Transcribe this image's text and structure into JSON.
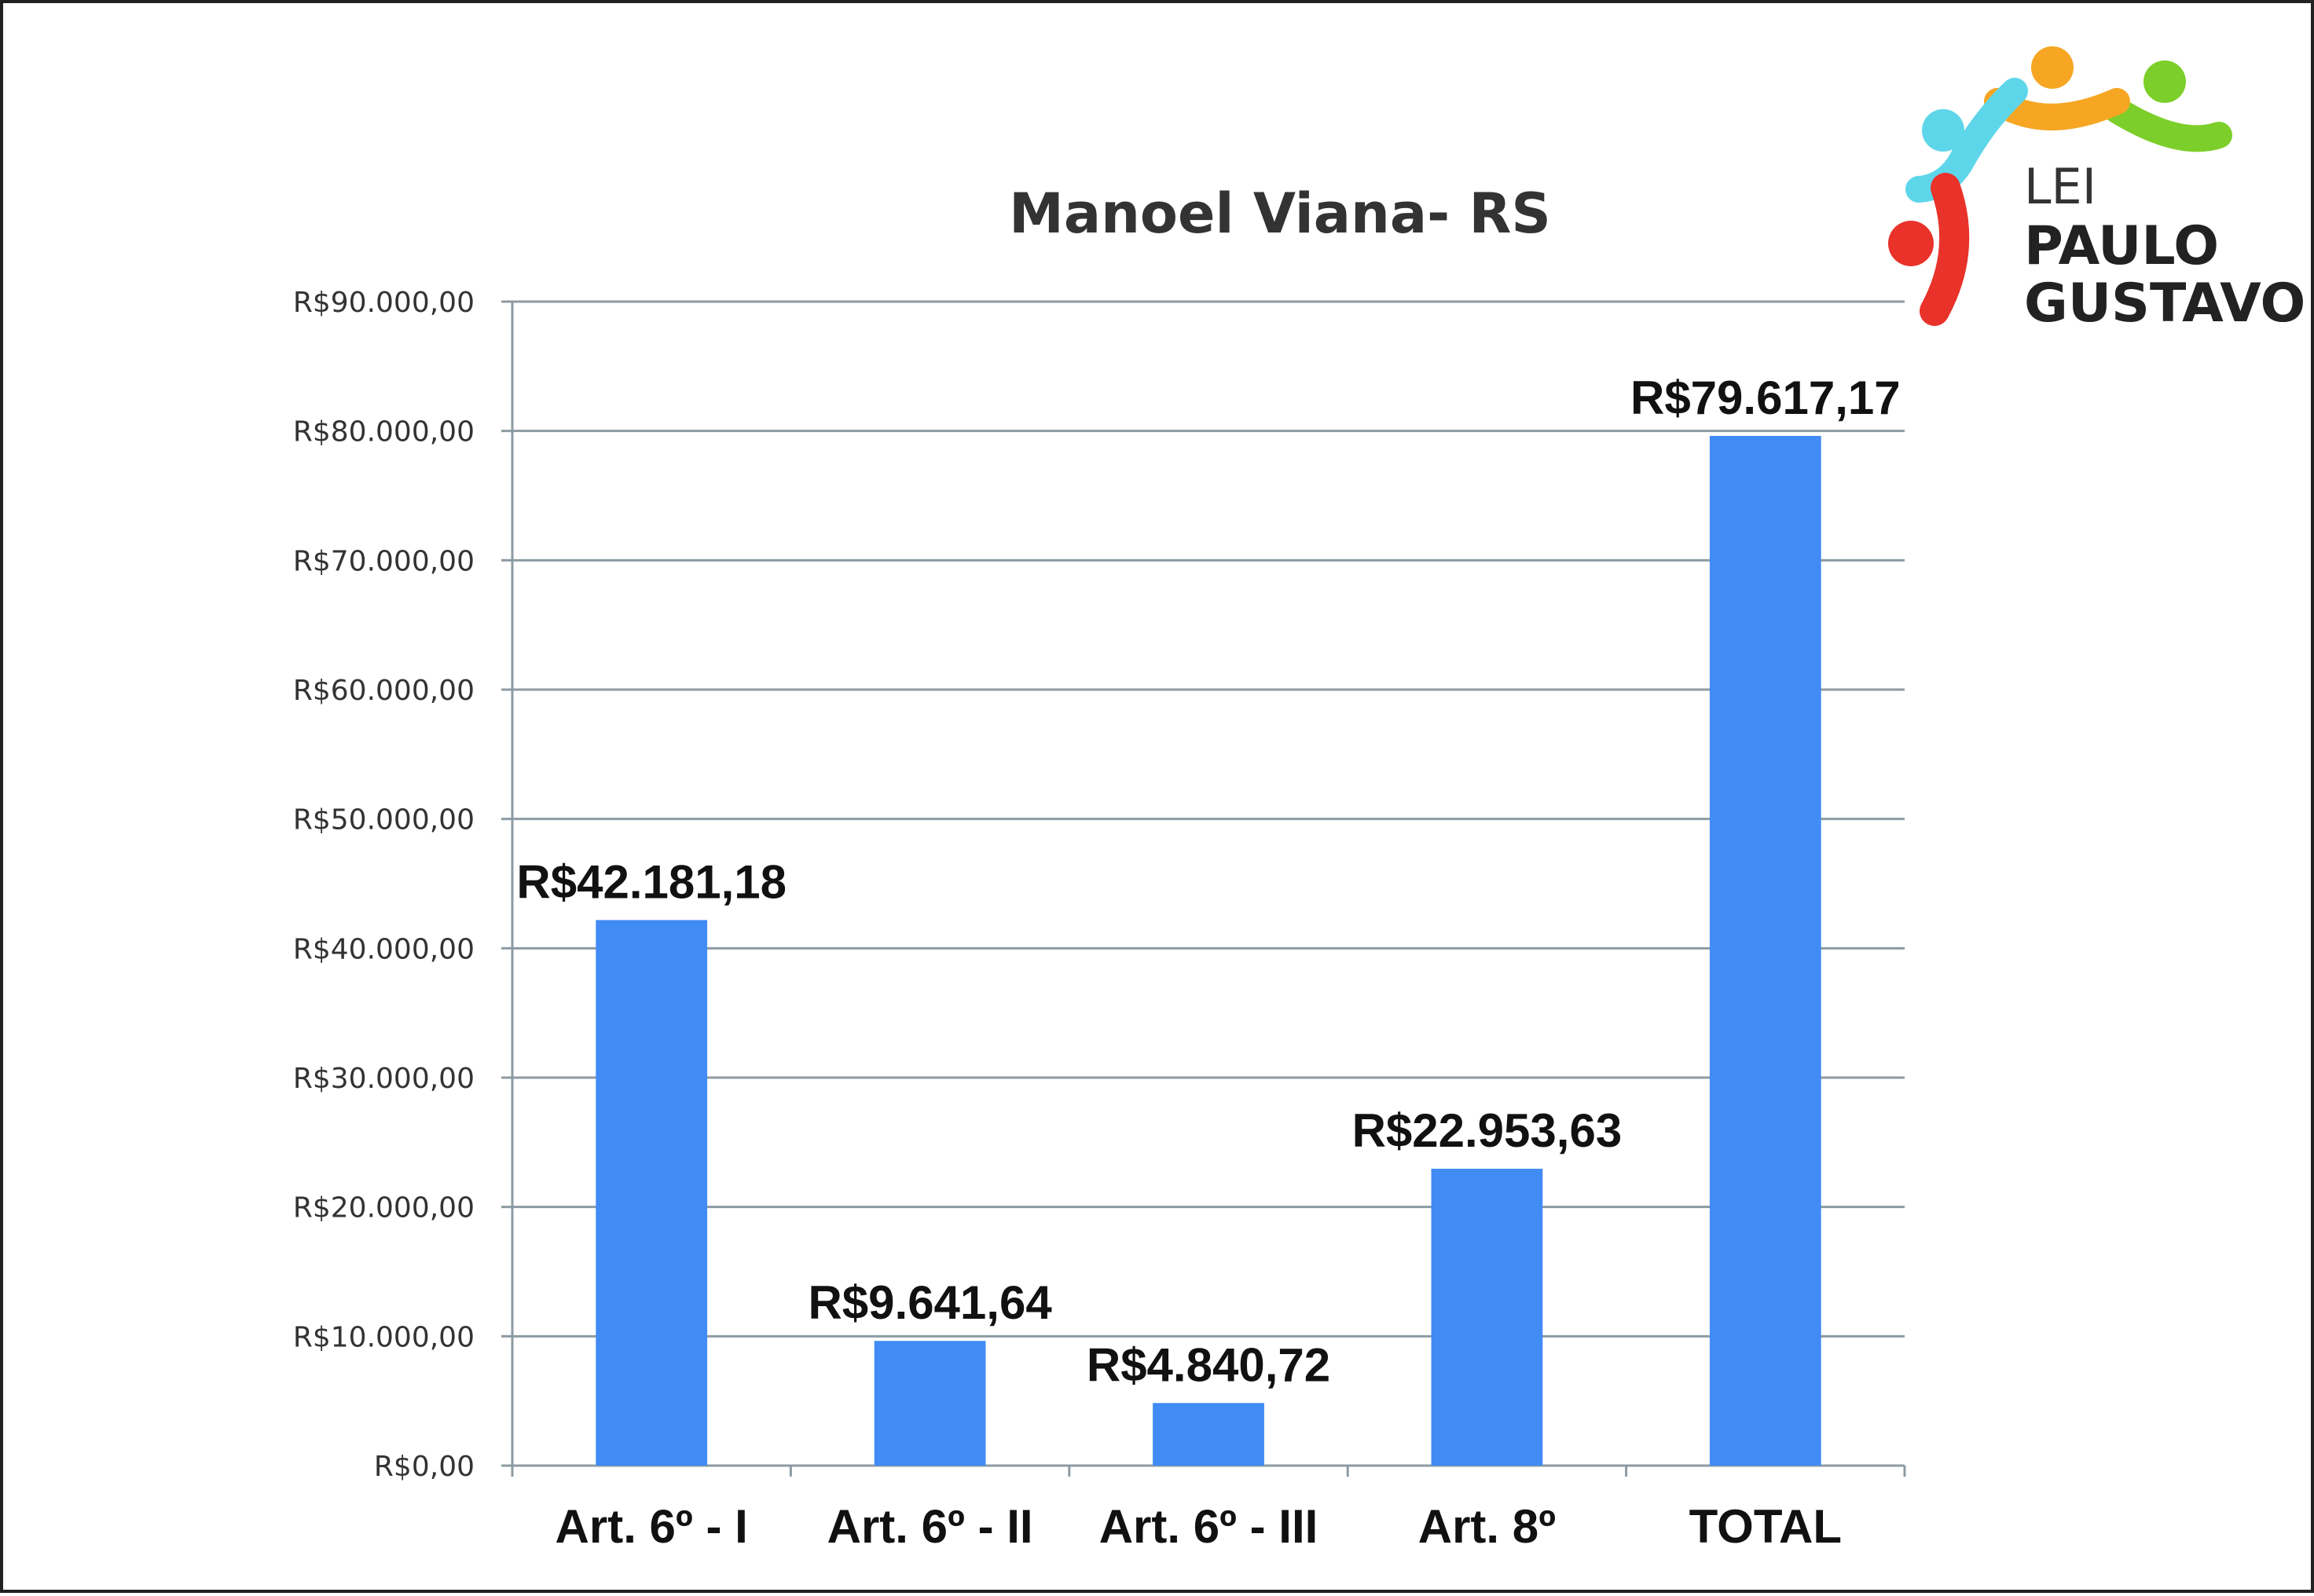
{
  "chart_data": {
    "type": "bar",
    "title": "Manoel Viana- RS",
    "xlabel": "",
    "ylabel": "",
    "categories": [
      "Art. 6º - I",
      "Art. 6º - II",
      "Art. 6º - III",
      "Art. 8º",
      "TOTAL"
    ],
    "values": [
      42181.18,
      9641.64,
      4840.72,
      22953.63,
      79617.17
    ],
    "data_labels": [
      "R$42.181,18",
      "R$9.641,64",
      "R$4.840,72",
      "R$22.953,63",
      "R$79.617,17"
    ],
    "ylim": [
      0,
      90000
    ],
    "yticks": [
      0,
      10000,
      20000,
      30000,
      40000,
      50000,
      60000,
      70000,
      80000,
      90000
    ],
    "ytick_labels": [
      "R$0,00",
      "R$10.000,00",
      "R$20.000,00",
      "R$30.000,00",
      "R$40.000,00",
      "R$50.000,00",
      "R$60.000,00",
      "R$70.000,00",
      "R$80.000,00",
      "R$90.000,00"
    ],
    "grid": true,
    "legend": "none",
    "bar_color": "#418bf5",
    "grid_color": "#8c9ba3"
  },
  "logo": {
    "line1": "LEI",
    "line2": "PAULO",
    "line3": "GUSTAVO",
    "colors": {
      "red": "#e8322a",
      "cyan": "#5ed6ea",
      "orange": "#f6a623",
      "green": "#7ccf2a"
    }
  }
}
